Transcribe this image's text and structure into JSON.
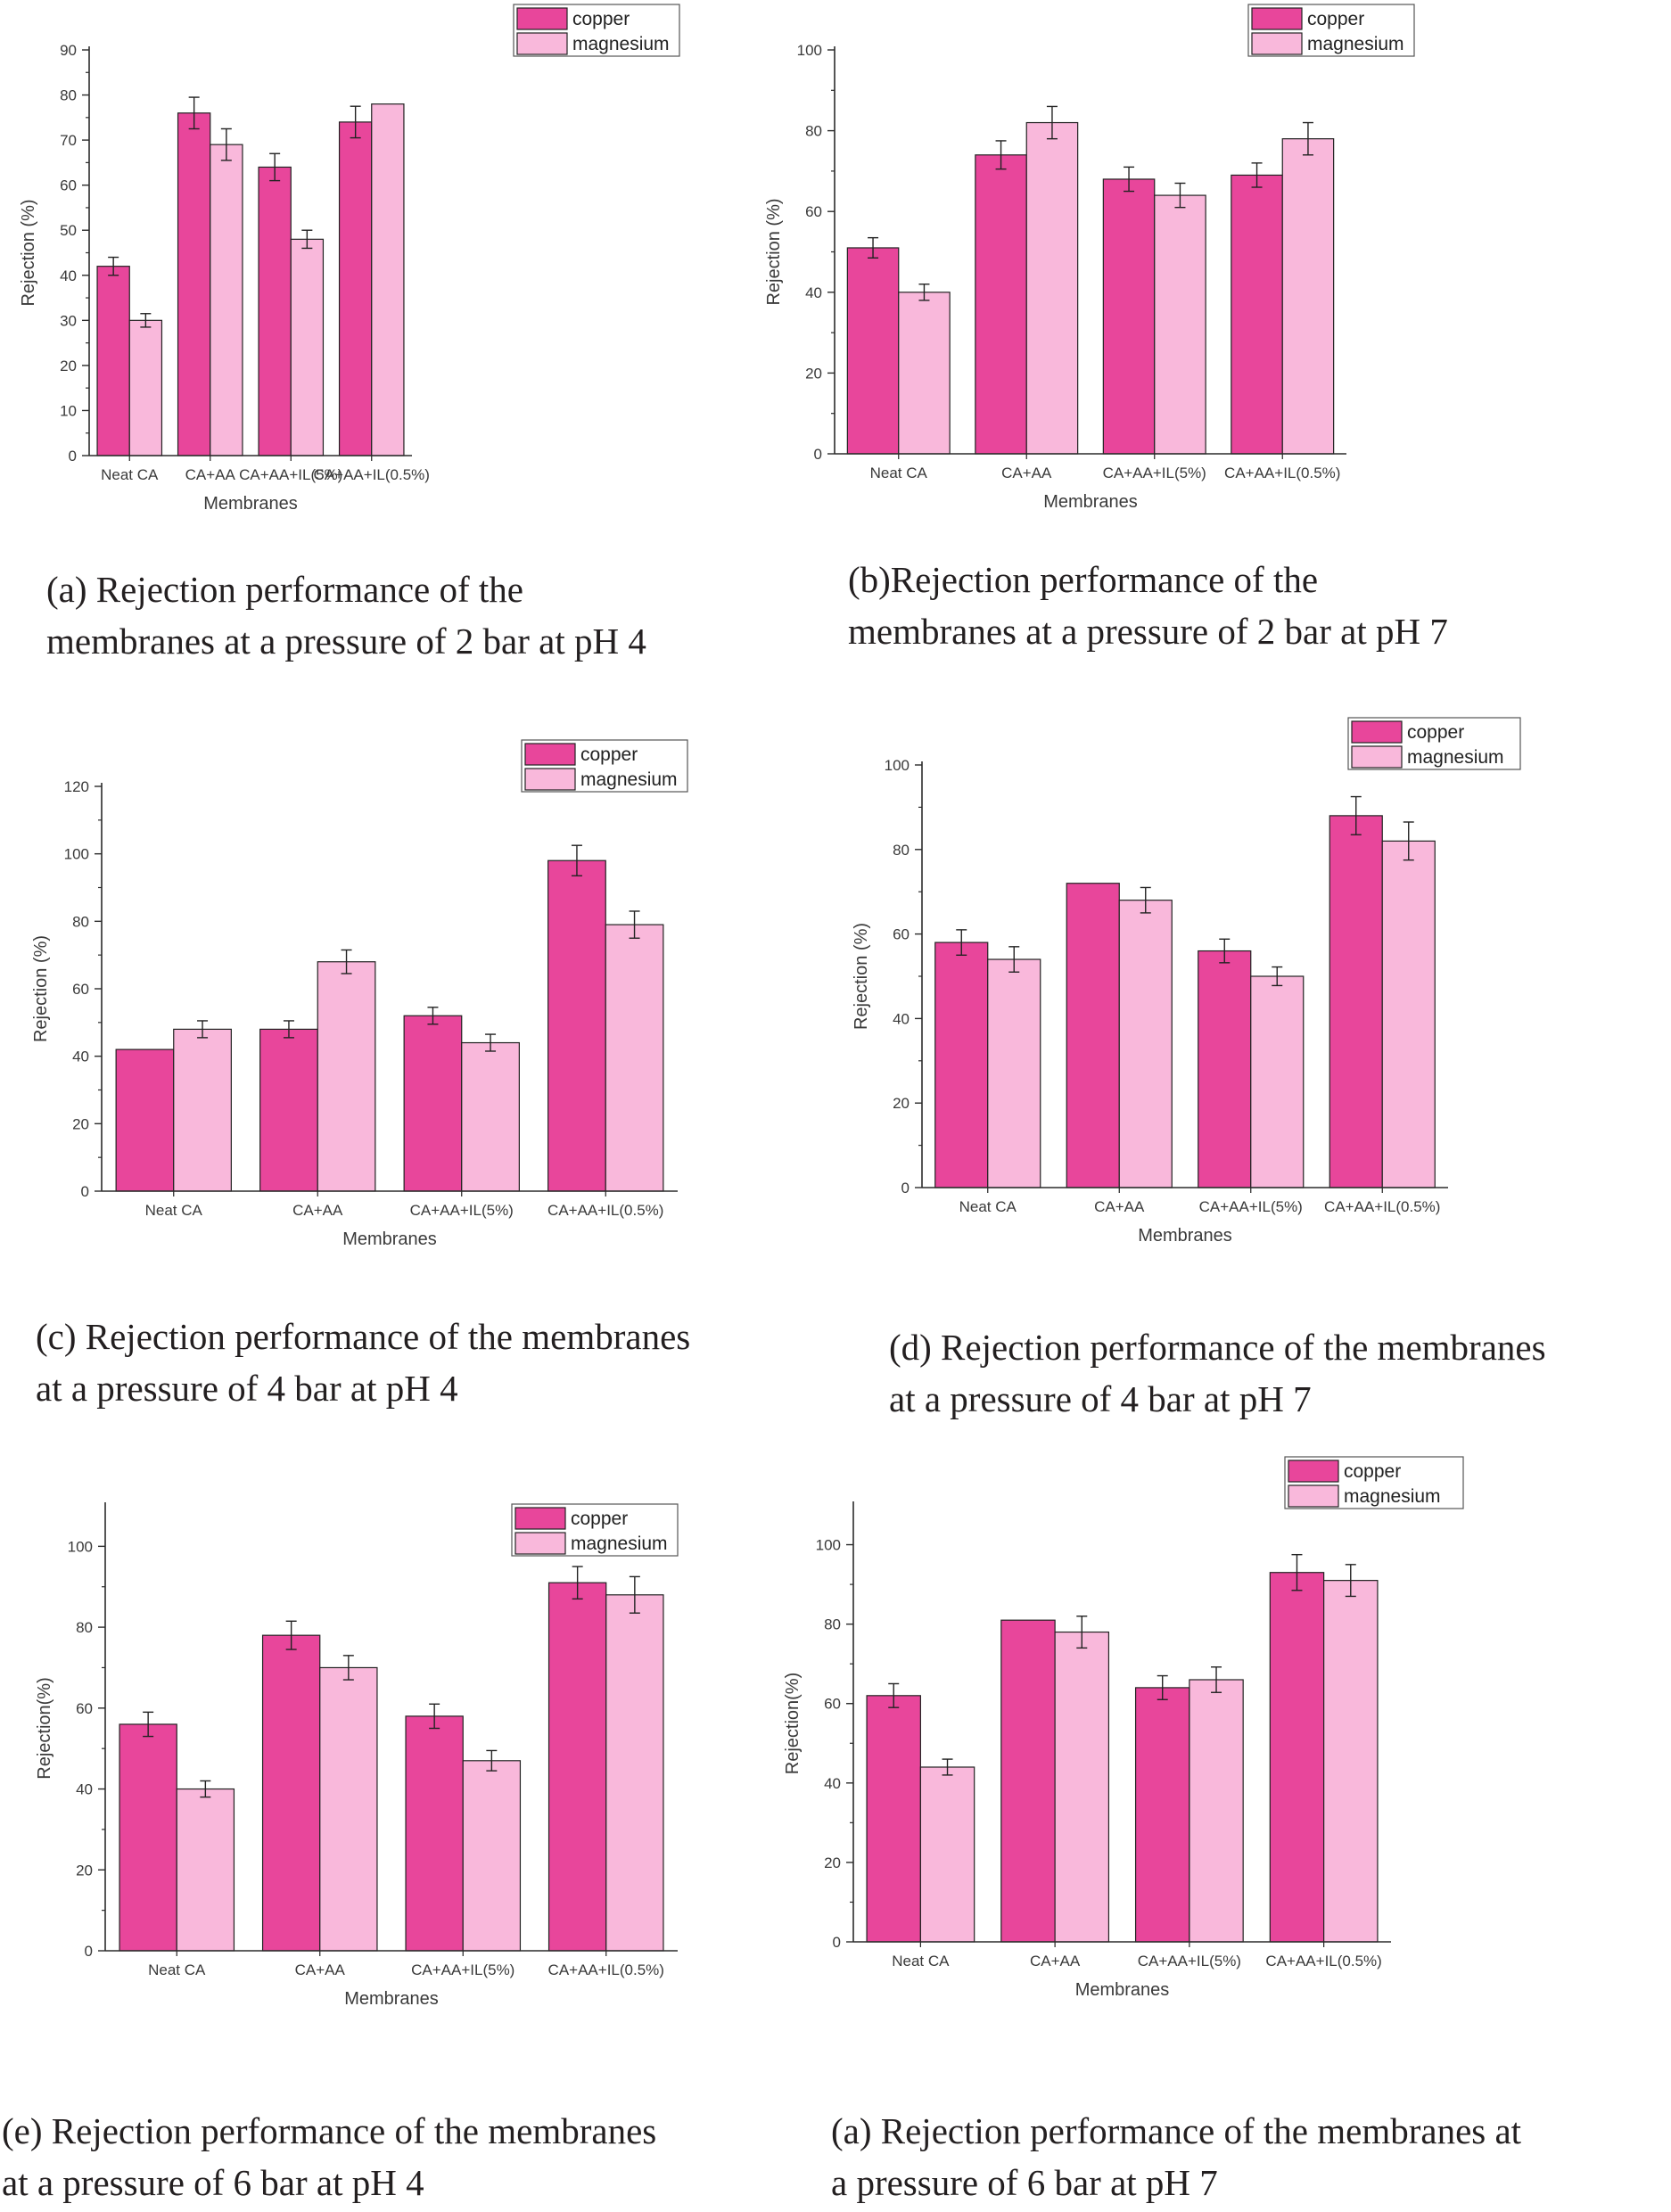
{
  "colors": {
    "copper": "#e8469b",
    "magnesium": "#f9b8db",
    "axis": "#2b2b2b"
  },
  "chart_data": [
    {
      "type": "bar",
      "categories": [
        "Neat CA",
        "CA+AA",
        "CA+AA+IL(5%)",
        "CA+AA+IL(0.5%)"
      ],
      "series": [
        {
          "name": "copper",
          "values": [
            42,
            76,
            64,
            74
          ],
          "errors": [
            2,
            3.5,
            3,
            3.5
          ]
        },
        {
          "name": "magnesium",
          "values": [
            30,
            69,
            48,
            78
          ],
          "errors": [
            1.5,
            3.5,
            2,
            0
          ]
        }
      ],
      "xlabel": "Membranes",
      "ylabel": "Rejection (%)",
      "ylim": [
        0,
        90
      ],
      "yticks": [
        0,
        10,
        20,
        30,
        40,
        50,
        60,
        70,
        80,
        90
      ],
      "legend": "top-right",
      "caption": [
        "(a) Rejection performance of the",
        "membranes at a pressure of 2 bar at pH 4"
      ]
    },
    {
      "type": "bar",
      "categories": [
        "Neat CA",
        "CA+AA",
        "CA+AA+IL(5%)",
        "CA+AA+IL(0.5%)"
      ],
      "series": [
        {
          "name": "copper",
          "values": [
            51,
            74,
            68,
            69
          ],
          "errors": [
            2.5,
            3.5,
            3,
            3
          ]
        },
        {
          "name": "magnesium",
          "values": [
            40,
            82,
            64,
            78
          ],
          "errors": [
            2,
            4,
            3,
            4
          ]
        }
      ],
      "xlabel": "Membranes",
      "ylabel": "Rejection (%)",
      "ylim": [
        0,
        100
      ],
      "yticks": [
        0,
        20,
        40,
        60,
        80,
        100
      ],
      "legend": "top-right",
      "caption": [
        "(b)Rejection performance of the",
        "membranes at a pressure of 2 bar at pH 7"
      ]
    },
    {
      "type": "bar",
      "categories": [
        "Neat CA",
        "CA+AA",
        "CA+AA+IL(5%)",
        "CA+AA+IL(0.5%)"
      ],
      "series": [
        {
          "name": "copper",
          "values": [
            42,
            48,
            52,
            98
          ],
          "errors": [
            0,
            2.5,
            2.5,
            4.5
          ]
        },
        {
          "name": "magnesium",
          "values": [
            48,
            68,
            44,
            79
          ],
          "errors": [
            2.5,
            3.5,
            2.5,
            4
          ]
        }
      ],
      "xlabel": "Membranes",
      "ylabel": "Rejection (%)",
      "ylim": [
        0,
        120
      ],
      "yticks": [
        0,
        20,
        40,
        60,
        80,
        100,
        120
      ],
      "legend": "top-right",
      "caption": [
        "(c) Rejection performance of the membranes",
        "at a pressure of 4 bar at pH 4"
      ]
    },
    {
      "type": "bar",
      "categories": [
        "Neat CA",
        "CA+AA",
        "CA+AA+IL(5%)",
        "CA+AA+IL(0.5%)"
      ],
      "series": [
        {
          "name": "copper",
          "values": [
            58,
            72,
            56,
            88
          ],
          "errors": [
            3,
            0,
            2.8,
            4.5
          ]
        },
        {
          "name": "magnesium",
          "values": [
            54,
            68,
            50,
            82
          ],
          "errors": [
            3,
            3,
            2.2,
            4.5
          ]
        }
      ],
      "xlabel": "Membranes",
      "ylabel": "Rejection (%)",
      "ylim": [
        0,
        100
      ],
      "yticks": [
        0,
        20,
        40,
        60,
        80,
        100
      ],
      "legend": "top-right",
      "caption": [
        "(d) Rejection performance of the membranes",
        "at a pressure of 4 bar at pH 7"
      ]
    },
    {
      "type": "bar",
      "categories": [
        "Neat CA",
        "CA+AA",
        "CA+AA+IL(5%)",
        "CA+AA+IL(0.5%)"
      ],
      "series": [
        {
          "name": "copper",
          "values": [
            56,
            78,
            58,
            91
          ],
          "errors": [
            3,
            3.5,
            3,
            4
          ]
        },
        {
          "name": "magnesium",
          "values": [
            40,
            70,
            47,
            88
          ],
          "errors": [
            2,
            3,
            2.5,
            4.5
          ]
        }
      ],
      "xlabel": "Membranes",
      "ylabel": "Rejection(%)",
      "ylim": [
        0,
        110
      ],
      "yticks": [
        0,
        20,
        40,
        60,
        80,
        100
      ],
      "legend": "top-right",
      "caption": [
        "(e) Rejection performance of the membranes",
        "at a pressure of 6 bar at pH 4"
      ]
    },
    {
      "type": "bar",
      "categories": [
        "Neat CA",
        "CA+AA",
        "CA+AA+IL(5%)",
        "CA+AA+IL(0.5%)"
      ],
      "series": [
        {
          "name": "copper",
          "values": [
            62,
            81,
            64,
            93
          ],
          "errors": [
            3,
            0,
            3,
            4.5
          ]
        },
        {
          "name": "magnesium",
          "values": [
            44,
            78,
            66,
            91
          ],
          "errors": [
            2,
            4,
            3.2,
            4
          ]
        }
      ],
      "xlabel": "Membranes",
      "ylabel": "Rejection(%)",
      "ylim": [
        0,
        110
      ],
      "yticks": [
        0,
        20,
        40,
        60,
        80,
        100
      ],
      "legend": "top-right",
      "caption": [
        "(a) Rejection performance of the membranes at",
        "a pressure of 6 bar at pH 7"
      ]
    }
  ]
}
